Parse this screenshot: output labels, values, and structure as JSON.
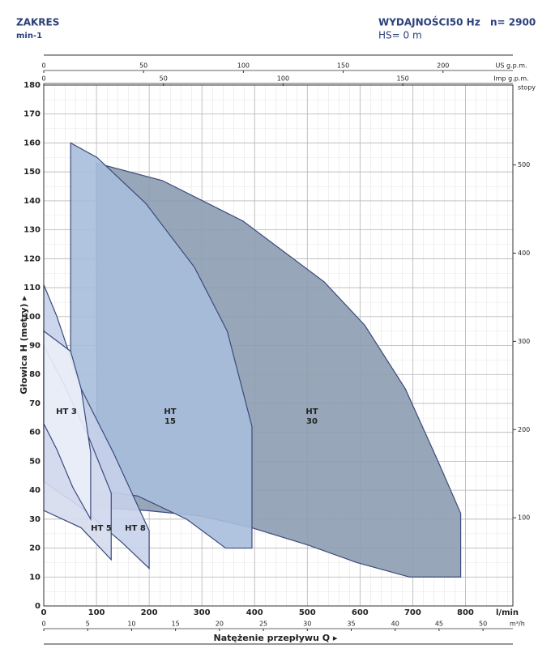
{
  "chart_data": {
    "type": "range",
    "header": {
      "left_title": "ZAKRES",
      "left_sub": "min-1",
      "right_title": "WYDAJNOŚCI50 Hz",
      "speed": "n= 2900",
      "hs": "HS= 0 m"
    },
    "ylabel": "Głowica H (metry) ▸",
    "xlabel": "Natężenie przepływu Q ▸",
    "xunit": "l/min",
    "xlim": [
      0,
      890
    ],
    "xticks": [
      0,
      100,
      200,
      300,
      400,
      500,
      600,
      700,
      800
    ],
    "ylim": [
      0,
      180
    ],
    "yticks": [
      0,
      10,
      20,
      30,
      40,
      50,
      60,
      70,
      80,
      90,
      100,
      110,
      120,
      130,
      140,
      150,
      160,
      170,
      180
    ],
    "grid": true,
    "secondary_axes": [
      {
        "unit": "US g.p.m.",
        "side": "top",
        "lim": [
          0,
          235
        ],
        "ticks": [
          0,
          50,
          100,
          150,
          200
        ]
      },
      {
        "unit": "Imp g.p.m.",
        "side": "top",
        "lim": [
          0,
          196
        ],
        "ticks": [
          0,
          50,
          100,
          150
        ]
      },
      {
        "unit": "m³/h",
        "side": "bottom",
        "lim": [
          0,
          53.4
        ],
        "ticks": [
          0,
          5,
          10,
          15,
          20,
          25,
          30,
          35,
          40,
          45,
          50
        ]
      },
      {
        "unit": "stopy",
        "side": "right",
        "lim": [
          0,
          590.6
        ],
        "ticks": [
          100,
          200,
          300,
          400,
          500
        ]
      }
    ],
    "series": [
      {
        "name": "HT 30",
        "color": "#8d9cb1",
        "x": [
          100,
          225,
          378,
          532,
          609,
          686,
          748,
          791,
          791,
          694,
          594,
          502,
          395,
          302,
          194,
          101
        ],
        "values": [
          153,
          147,
          133,
          112,
          97,
          75,
          50,
          32,
          10,
          10,
          15,
          21,
          27,
          31,
          33,
          34
        ]
      },
      {
        "name": "HT 15",
        "color": "#a7bedb",
        "x": [
          51,
          101,
          194,
          286,
          348,
          395,
          395,
          345,
          271,
          178,
          51
        ],
        "values": [
          160,
          155,
          139,
          117,
          95,
          62,
          20,
          20,
          30,
          38,
          41
        ]
      },
      {
        "name": "HT 8",
        "color": "#c6d1ea",
        "x": [
          0,
          25,
          71,
          132,
          200,
          200,
          148,
          71,
          0
        ],
        "values": [
          111,
          100,
          75,
          53,
          26,
          13,
          22,
          34,
          43
        ]
      },
      {
        "name": "HT 5",
        "color": "#d6dcee",
        "x": [
          0,
          40,
          86,
          128,
          128,
          71,
          0
        ],
        "values": [
          90,
          76,
          58,
          39,
          16,
          27,
          33
        ]
      },
      {
        "name": "HT 3",
        "color": "#eaeef8",
        "x": [
          0,
          51,
          71,
          89,
          89,
          55,
          25,
          0
        ],
        "values": [
          95,
          88,
          75,
          53,
          30,
          41,
          54,
          63
        ]
      }
    ]
  }
}
